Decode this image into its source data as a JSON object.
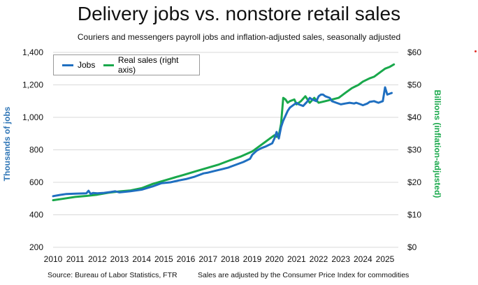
{
  "colors": {
    "jobs": "#1f6fc0",
    "sales": "#19a84b",
    "axis_left": "#2e75b6",
    "axis_right": "#19a84b",
    "grid": "#d9d9d9"
  },
  "chart_data": {
    "type": "line",
    "title": "Delivery jobs vs. nonstore retail sales",
    "subtitle": "Couriers and messengers payroll jobs and inflation-adjusted sales, seasonally adjusted",
    "ylabel": "Thousands of jobs",
    "y2label": "Billions (inflation-adjusted)",
    "ylim": [
      200,
      1400
    ],
    "y2lim": [
      0,
      60
    ],
    "xlim": [
      2010,
      2025.6
    ],
    "yticks": [
      "200",
      "400",
      "600",
      "800",
      "1,000",
      "1,200",
      "1,400"
    ],
    "y2ticks": [
      "$0",
      "$10",
      "$20",
      "$30",
      "$40",
      "$50",
      "$60"
    ],
    "xticks": [
      "2010",
      "2011",
      "2012",
      "2013",
      "2014",
      "2015",
      "2016",
      "2017",
      "2018",
      "2019",
      "2020",
      "2021",
      "2022",
      "2023",
      "2024",
      "2025"
    ],
    "legend_position": "top-left",
    "series": [
      {
        "name": "Jobs",
        "axis": "left",
        "x": [
          2010.0,
          2010.3,
          2010.6,
          2011.0,
          2011.5,
          2011.6,
          2011.7,
          2011.8,
          2012.0,
          2012.3,
          2012.6,
          2012.8,
          2013.0,
          2013.5,
          2014.0,
          2014.5,
          2014.9,
          2015.3,
          2015.7,
          2016.0,
          2016.4,
          2016.8,
          2017.0,
          2017.3,
          2017.6,
          2017.9,
          2018.0,
          2018.3,
          2018.6,
          2018.9,
          2019.0,
          2019.2,
          2019.4,
          2019.6,
          2019.9,
          2020.0,
          2020.1,
          2020.2,
          2020.3,
          2020.4,
          2020.5,
          2020.6,
          2020.7,
          2020.8,
          2021.0,
          2021.1,
          2021.3,
          2021.5,
          2021.6,
          2021.7,
          2021.9,
          2022.0,
          2022.1,
          2022.2,
          2022.3,
          2022.5,
          2022.6,
          2022.8,
          2023.0,
          2023.2,
          2023.4,
          2023.6,
          2023.7,
          2023.9,
          2024.0,
          2024.2,
          2024.3,
          2024.5,
          2024.7,
          2024.9,
          2025.0,
          2025.1,
          2025.3
        ],
        "values": [
          515,
          522,
          528,
          530,
          532,
          548,
          528,
          534,
          532,
          535,
          540,
          545,
          538,
          545,
          555,
          575,
          595,
          600,
          612,
          620,
          635,
          655,
          660,
          670,
          680,
          690,
          695,
          710,
          725,
          745,
          770,
          795,
          810,
          820,
          840,
          870,
          910,
          870,
          940,
          980,
          1010,
          1040,
          1060,
          1070,
          1090,
          1080,
          1070,
          1100,
          1120,
          1110,
          1100,
          1130,
          1140,
          1140,
          1130,
          1120,
          1100,
          1090,
          1080,
          1085,
          1090,
          1085,
          1090,
          1080,
          1075,
          1085,
          1095,
          1100,
          1090,
          1100,
          1185,
          1140,
          1150
        ]
      },
      {
        "name": "Real sales (right axis)",
        "axis": "right",
        "x": [
          2010.0,
          2010.5,
          2011.0,
          2011.5,
          2012.0,
          2012.5,
          2013.0,
          2013.5,
          2014.0,
          2014.5,
          2015.0,
          2015.5,
          2016.0,
          2016.5,
          2017.0,
          2017.5,
          2018.0,
          2018.5,
          2019.0,
          2019.3,
          2019.6,
          2019.8,
          2020.0,
          2020.1,
          2020.2,
          2020.3,
          2020.4,
          2020.5,
          2020.6,
          2020.7,
          2020.9,
          2021.0,
          2021.2,
          2021.4,
          2021.6,
          2021.8,
          2022.0,
          2022.3,
          2022.6,
          2022.9,
          2023.0,
          2023.2,
          2023.5,
          2023.8,
          2024.0,
          2024.3,
          2024.5,
          2024.8,
          2025.0,
          2025.2,
          2025.4
        ],
        "values": [
          14.5,
          15,
          15.5,
          15.8,
          16.2,
          16.8,
          17.2,
          17.5,
          18.2,
          19.5,
          20.5,
          21.5,
          22.5,
          23.5,
          24.5,
          25.5,
          26.8,
          28,
          29.5,
          31,
          32.5,
          33.5,
          34.5,
          34.0,
          34.5,
          38,
          46,
          45.5,
          44.5,
          45,
          45.5,
          44,
          45,
          46.5,
          44.5,
          46,
          44.5,
          45,
          45.5,
          46,
          46.5,
          47.5,
          49,
          50,
          51,
          52,
          52.5,
          54,
          55,
          55.5,
          56.3
        ]
      }
    ]
  },
  "source_text": "Source: Bureau of Labor Statistics, FTR",
  "note_text": "Sales are adjusted by the Consumer Price Index for commodities"
}
